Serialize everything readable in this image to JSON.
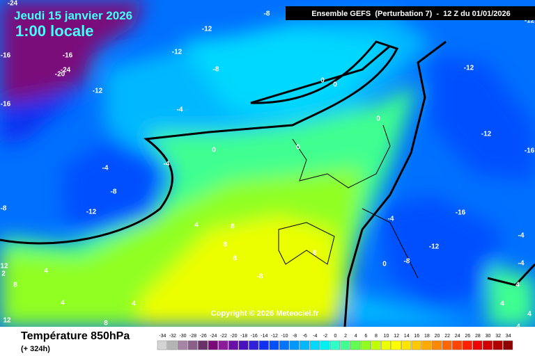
{
  "header": {
    "date": "Jeudi 15 janvier 2026",
    "local_time": "1:00 locale",
    "run": "Ensemble GEFS  (Perturbation 7)  -  12 Z du 01/01/2026"
  },
  "copyright": "Copyright © 2026 Meteociel.fr",
  "footer": {
    "title": "Température 850hPa",
    "lead": "(+ 324h)"
  },
  "contour_labels": [
    -24,
    -8,
    -12,
    -12,
    -16,
    -16,
    -24,
    -20,
    -8,
    -12,
    -16,
    0,
    0,
    -12,
    -4,
    0,
    -12,
    0,
    0,
    -4,
    -4,
    -8,
    -12,
    -8,
    -16,
    4,
    8,
    -4,
    8,
    -12,
    8,
    8,
    -8,
    0,
    -4,
    -4,
    12,
    2,
    4,
    -8,
    8,
    4,
    4,
    12,
    8,
    4,
    4,
    4,
    4,
    -16,
    -12
  ],
  "scale": {
    "ticks": [
      -34,
      -32,
      -30,
      -28,
      -26,
      -24,
      -22,
      -20,
      -18,
      -16,
      -14,
      -12,
      -10,
      -8,
      -6,
      -4,
      -2,
      0,
      2,
      4,
      6,
      8,
      10,
      12,
      14,
      16,
      18,
      20,
      22,
      24,
      26,
      28,
      30,
      32,
      34
    ],
    "colors": [
      "#d4d4d4",
      "#b4b4b4",
      "#a884a8",
      "#886088",
      "#6a306a",
      "#7a0a7a",
      "#8c1c9c",
      "#6a10a8",
      "#4a10c0",
      "#3020d8",
      "#1030f0",
      "#0050ff",
      "#0074ff",
      "#0098ff",
      "#00b8ff",
      "#00d8ff",
      "#00f0f0",
      "#30ffc8",
      "#40ff90",
      "#60ff50",
      "#90ff20",
      "#c0ff00",
      "#ecff00",
      "#ffff00",
      "#ffe400",
      "#ffc800",
      "#ffaa00",
      "#ff8800",
      "#ff6600",
      "#ff4400",
      "#ff2000",
      "#f00000",
      "#d00000",
      "#b00000",
      "#900000"
    ]
  }
}
